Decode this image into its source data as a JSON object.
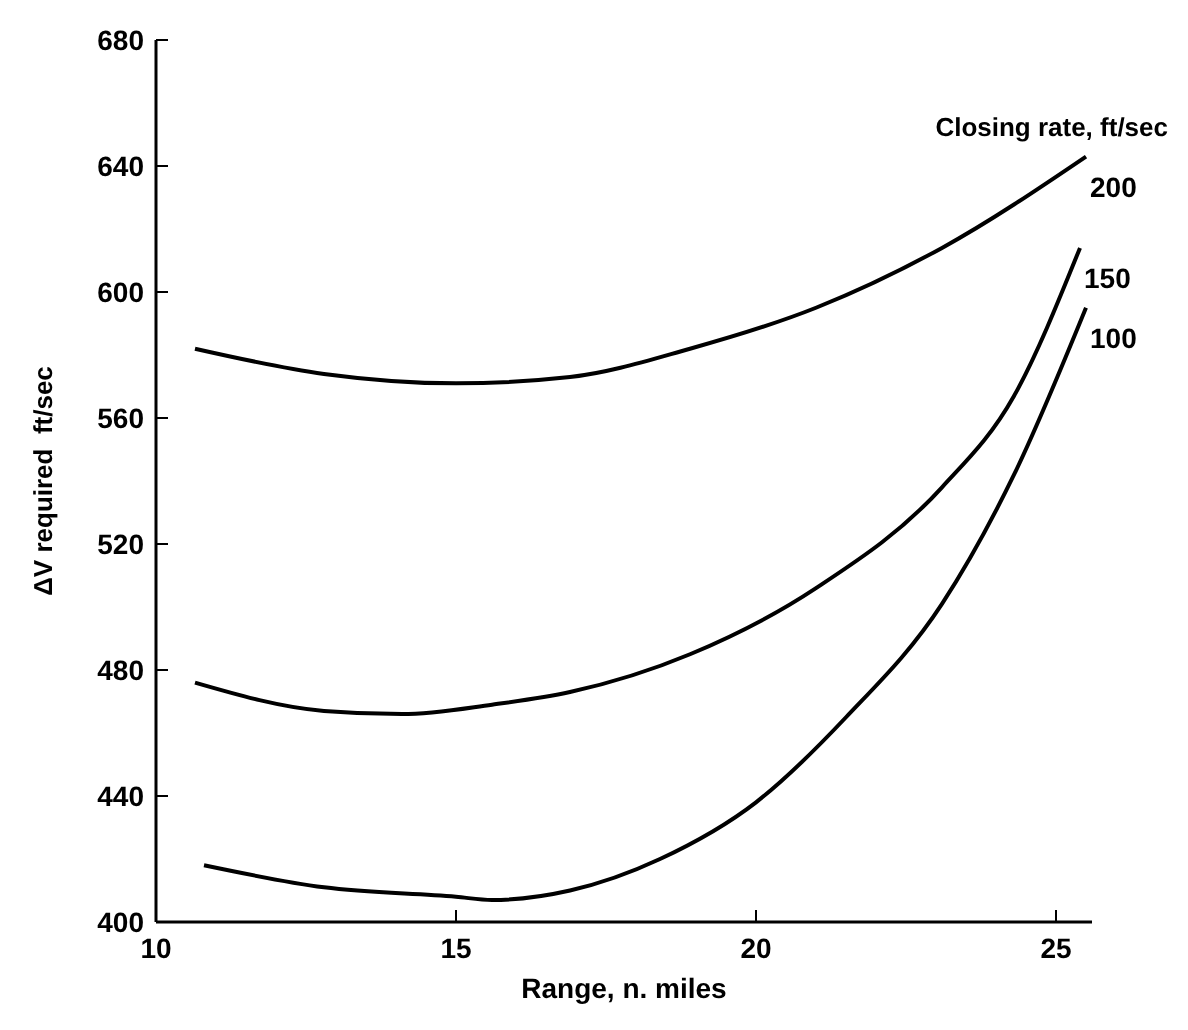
{
  "chart_data": {
    "type": "line",
    "xlabel": "Range, n. miles",
    "ylabel": "ΔV required  ft/sec",
    "legend_title": "Closing rate, ft/sec",
    "xlim": [
      10,
      25.6
    ],
    "xticks": [
      10,
      15,
      20,
      25
    ],
    "ylim": [
      400,
      680
    ],
    "yticks": [
      400,
      440,
      480,
      520,
      560,
      600,
      640,
      680
    ],
    "grid": false,
    "series": [
      {
        "name": "200",
        "color": "#000000",
        "x": [
          10.65,
          12.8,
          15,
          16.9,
          18.9,
          21,
          23.1,
          25.5
        ],
        "values": [
          582,
          574,
          571,
          573,
          582,
          595,
          614,
          643
        ]
      },
      {
        "name": "150",
        "color": "#000000",
        "x": [
          10.65,
          12.8,
          14.1,
          15.6,
          16.9,
          18.9,
          21,
          23.1,
          24.3,
          25.4
        ],
        "values": [
          476,
          467,
          466,
          469,
          473,
          485,
          506,
          538,
          567,
          614
        ]
      },
      {
        "name": "100",
        "color": "#000000",
        "x": [
          10.8,
          12.8,
          15,
          15.6,
          16.9,
          18.4,
          20,
          21.5,
          23.1,
          24.3,
          25.5
        ],
        "values": [
          418,
          411,
          408,
          407,
          410,
          420,
          438,
          465,
          501,
          542,
          595
        ]
      }
    ]
  }
}
